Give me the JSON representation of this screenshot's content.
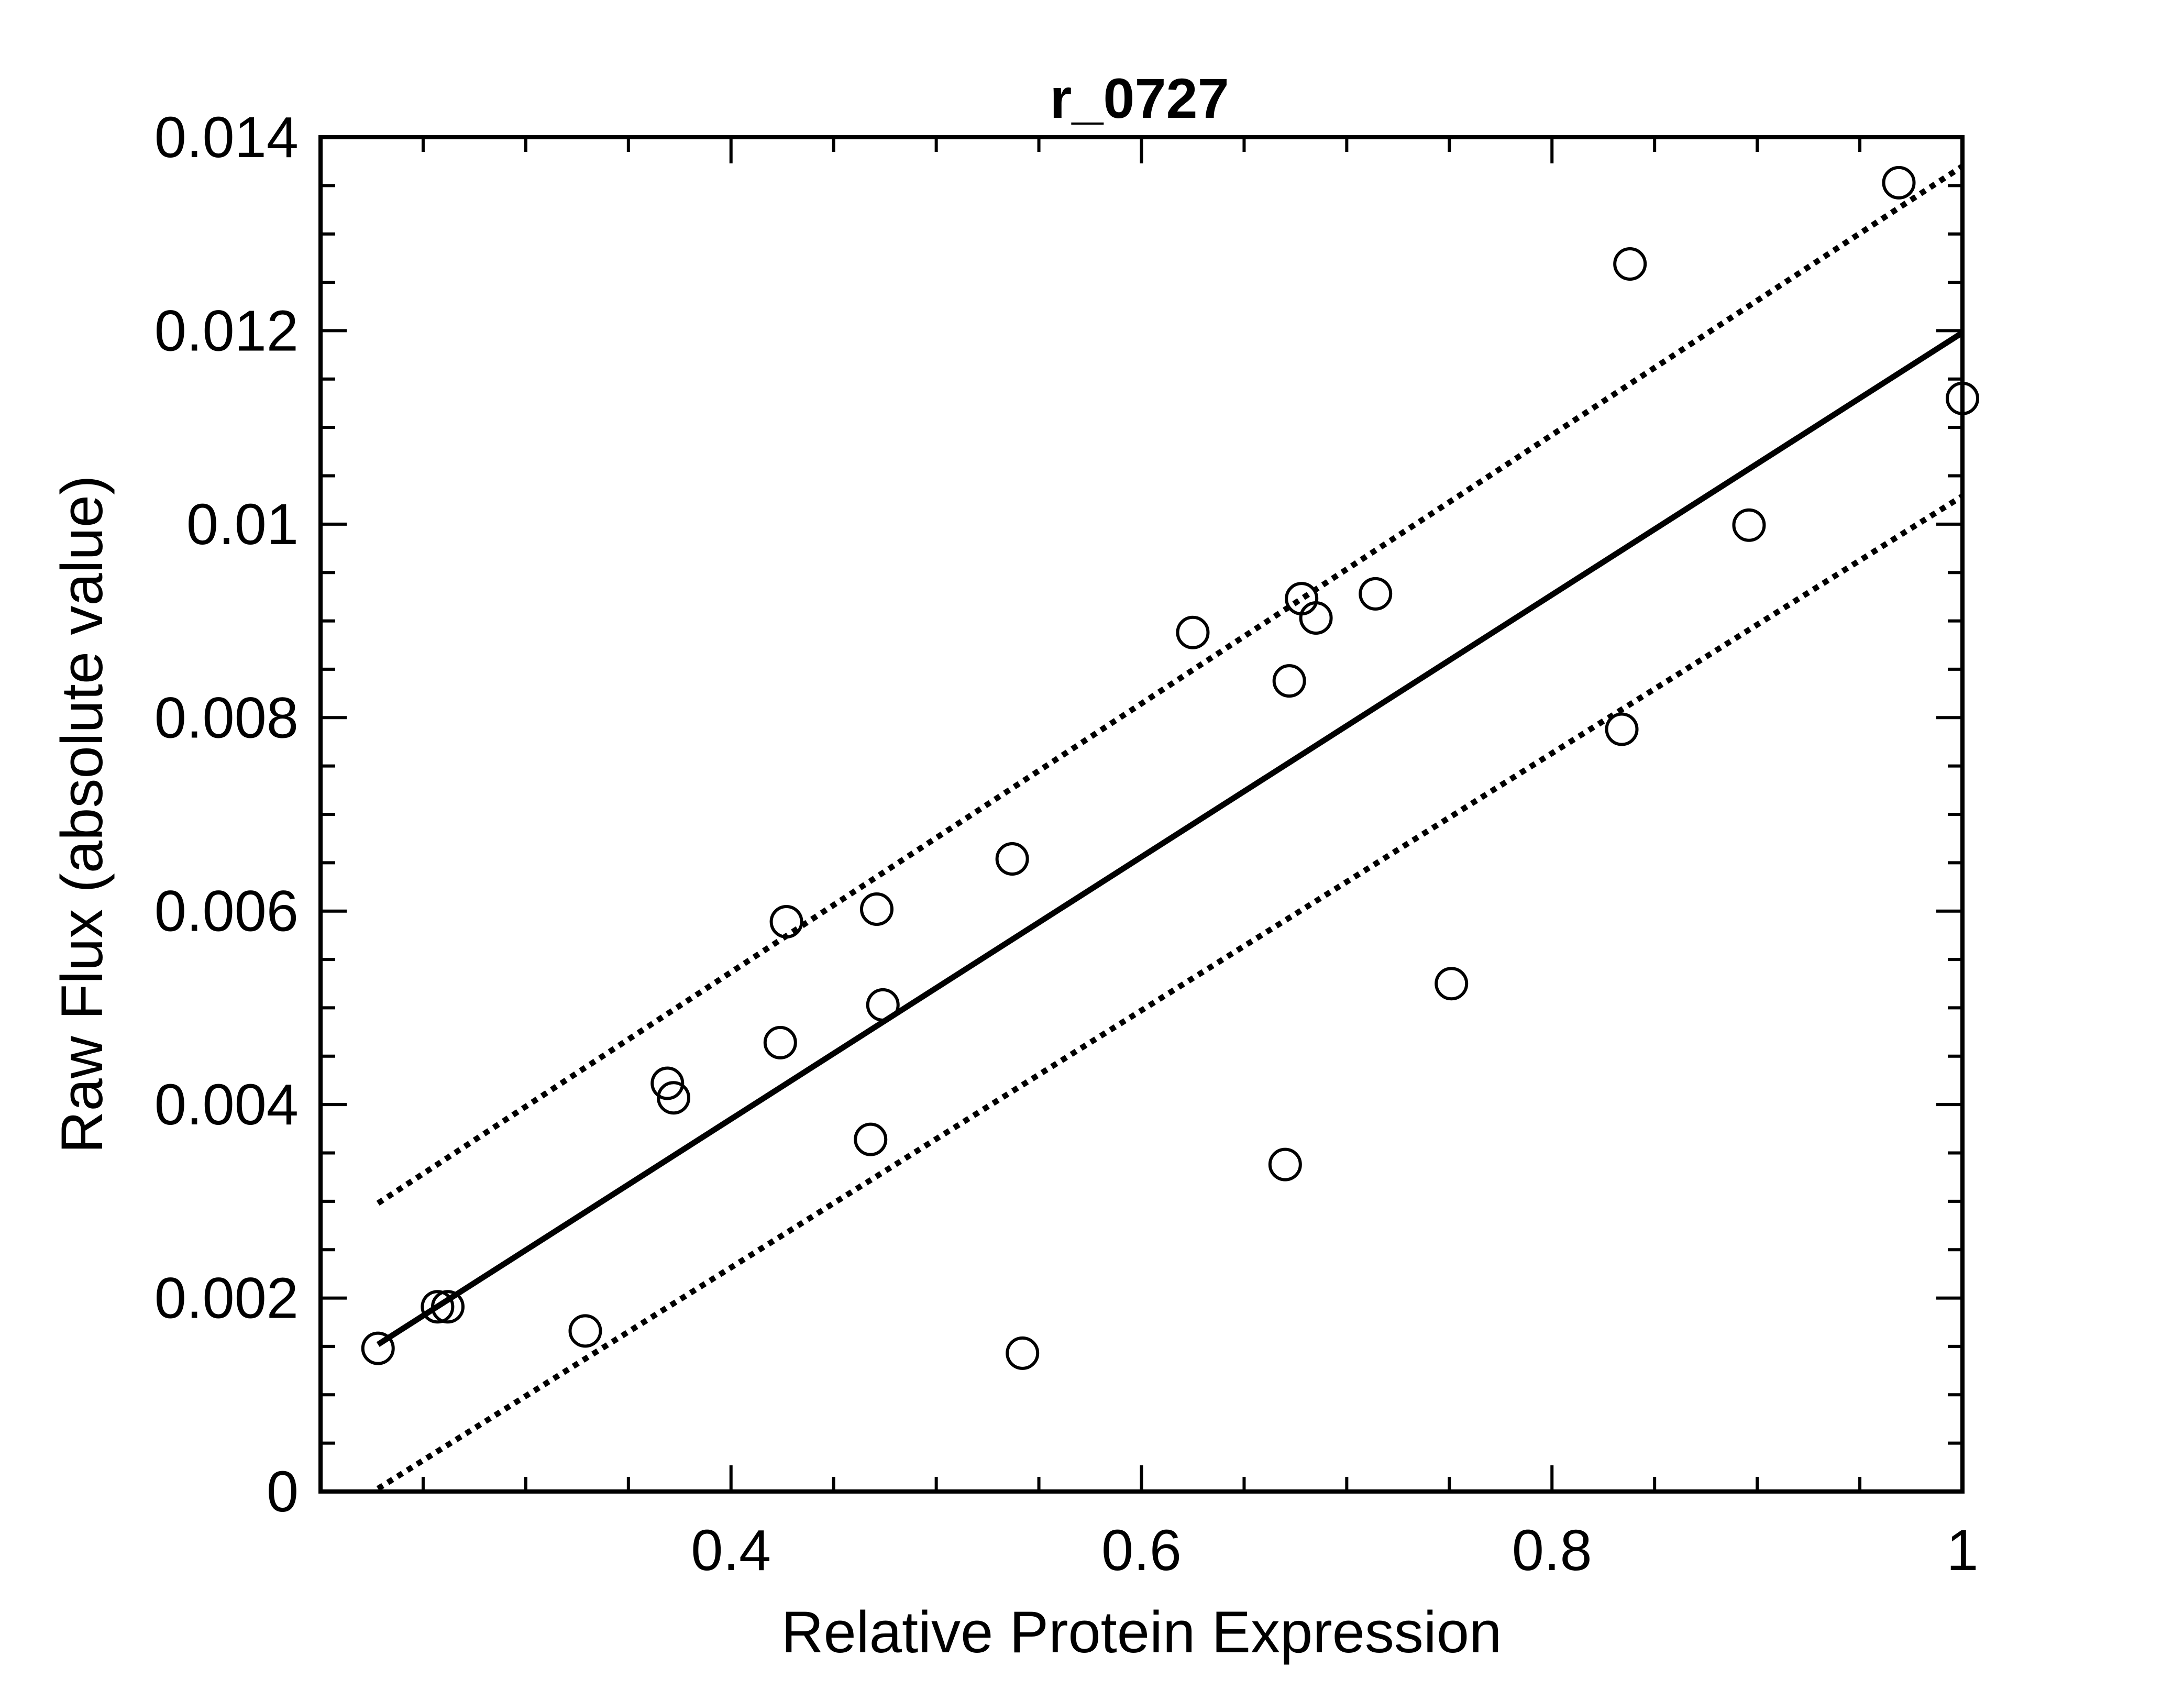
{
  "chart_data": {
    "type": "scatter",
    "title": "r_0727",
    "xlabel": "Relative Protein Expression",
    "ylabel": "Raw Flux (absolute value)",
    "xlim": [
      0.2,
      1.0
    ],
    "ylim": [
      0,
      0.014
    ],
    "x_tick_values": [
      0.4,
      0.6,
      0.8,
      1.0
    ],
    "x_tick_labels": [
      "0.4",
      "0.6",
      "0.8",
      "1"
    ],
    "y_tick_values": [
      0,
      0.002,
      0.004,
      0.006,
      0.008,
      0.01,
      0.012,
      0.014
    ],
    "y_tick_labels": [
      "0",
      "0.002",
      "0.004",
      "0.006",
      "0.008",
      "0.01",
      "0.012",
      "0.014"
    ],
    "grid": false,
    "points": [
      {
        "x": 0.228,
        "y": 0.00148
      },
      {
        "x": 0.257,
        "y": 0.00191
      },
      {
        "x": 0.262,
        "y": 0.00191
      },
      {
        "x": 0.329,
        "y": 0.00166
      },
      {
        "x": 0.369,
        "y": 0.00422
      },
      {
        "x": 0.372,
        "y": 0.00407
      },
      {
        "x": 0.424,
        "y": 0.00464
      },
      {
        "x": 0.427,
        "y": 0.00589
      },
      {
        "x": 0.468,
        "y": 0.00364
      },
      {
        "x": 0.471,
        "y": 0.00602
      },
      {
        "x": 0.474,
        "y": 0.00503
      },
      {
        "x": 0.537,
        "y": 0.00654
      },
      {
        "x": 0.542,
        "y": 0.00143
      },
      {
        "x": 0.625,
        "y": 0.00888
      },
      {
        "x": 0.67,
        "y": 0.00338
      },
      {
        "x": 0.672,
        "y": 0.00838
      },
      {
        "x": 0.678,
        "y": 0.00923
      },
      {
        "x": 0.685,
        "y": 0.00903
      },
      {
        "x": 0.714,
        "y": 0.00928
      },
      {
        "x": 0.751,
        "y": 0.00525
      },
      {
        "x": 0.834,
        "y": 0.00788
      },
      {
        "x": 0.838,
        "y": 0.01269
      },
      {
        "x": 0.896,
        "y": 0.00999
      },
      {
        "x": 0.969,
        "y": 0.01353
      },
      {
        "x": 1.0,
        "y": 0.0113
      }
    ],
    "fit_line": {
      "x": [
        0.228,
        1.0
      ],
      "y": [
        0.00152,
        0.01198
      ]
    },
    "confidence_upper": {
      "x": [
        0.228,
        1.0
      ],
      "y": [
        0.00298,
        0.0137
      ]
    },
    "confidence_lower": {
      "x": [
        0.228,
        1.0
      ],
      "y": [
        3e-05,
        0.01029
      ]
    }
  }
}
